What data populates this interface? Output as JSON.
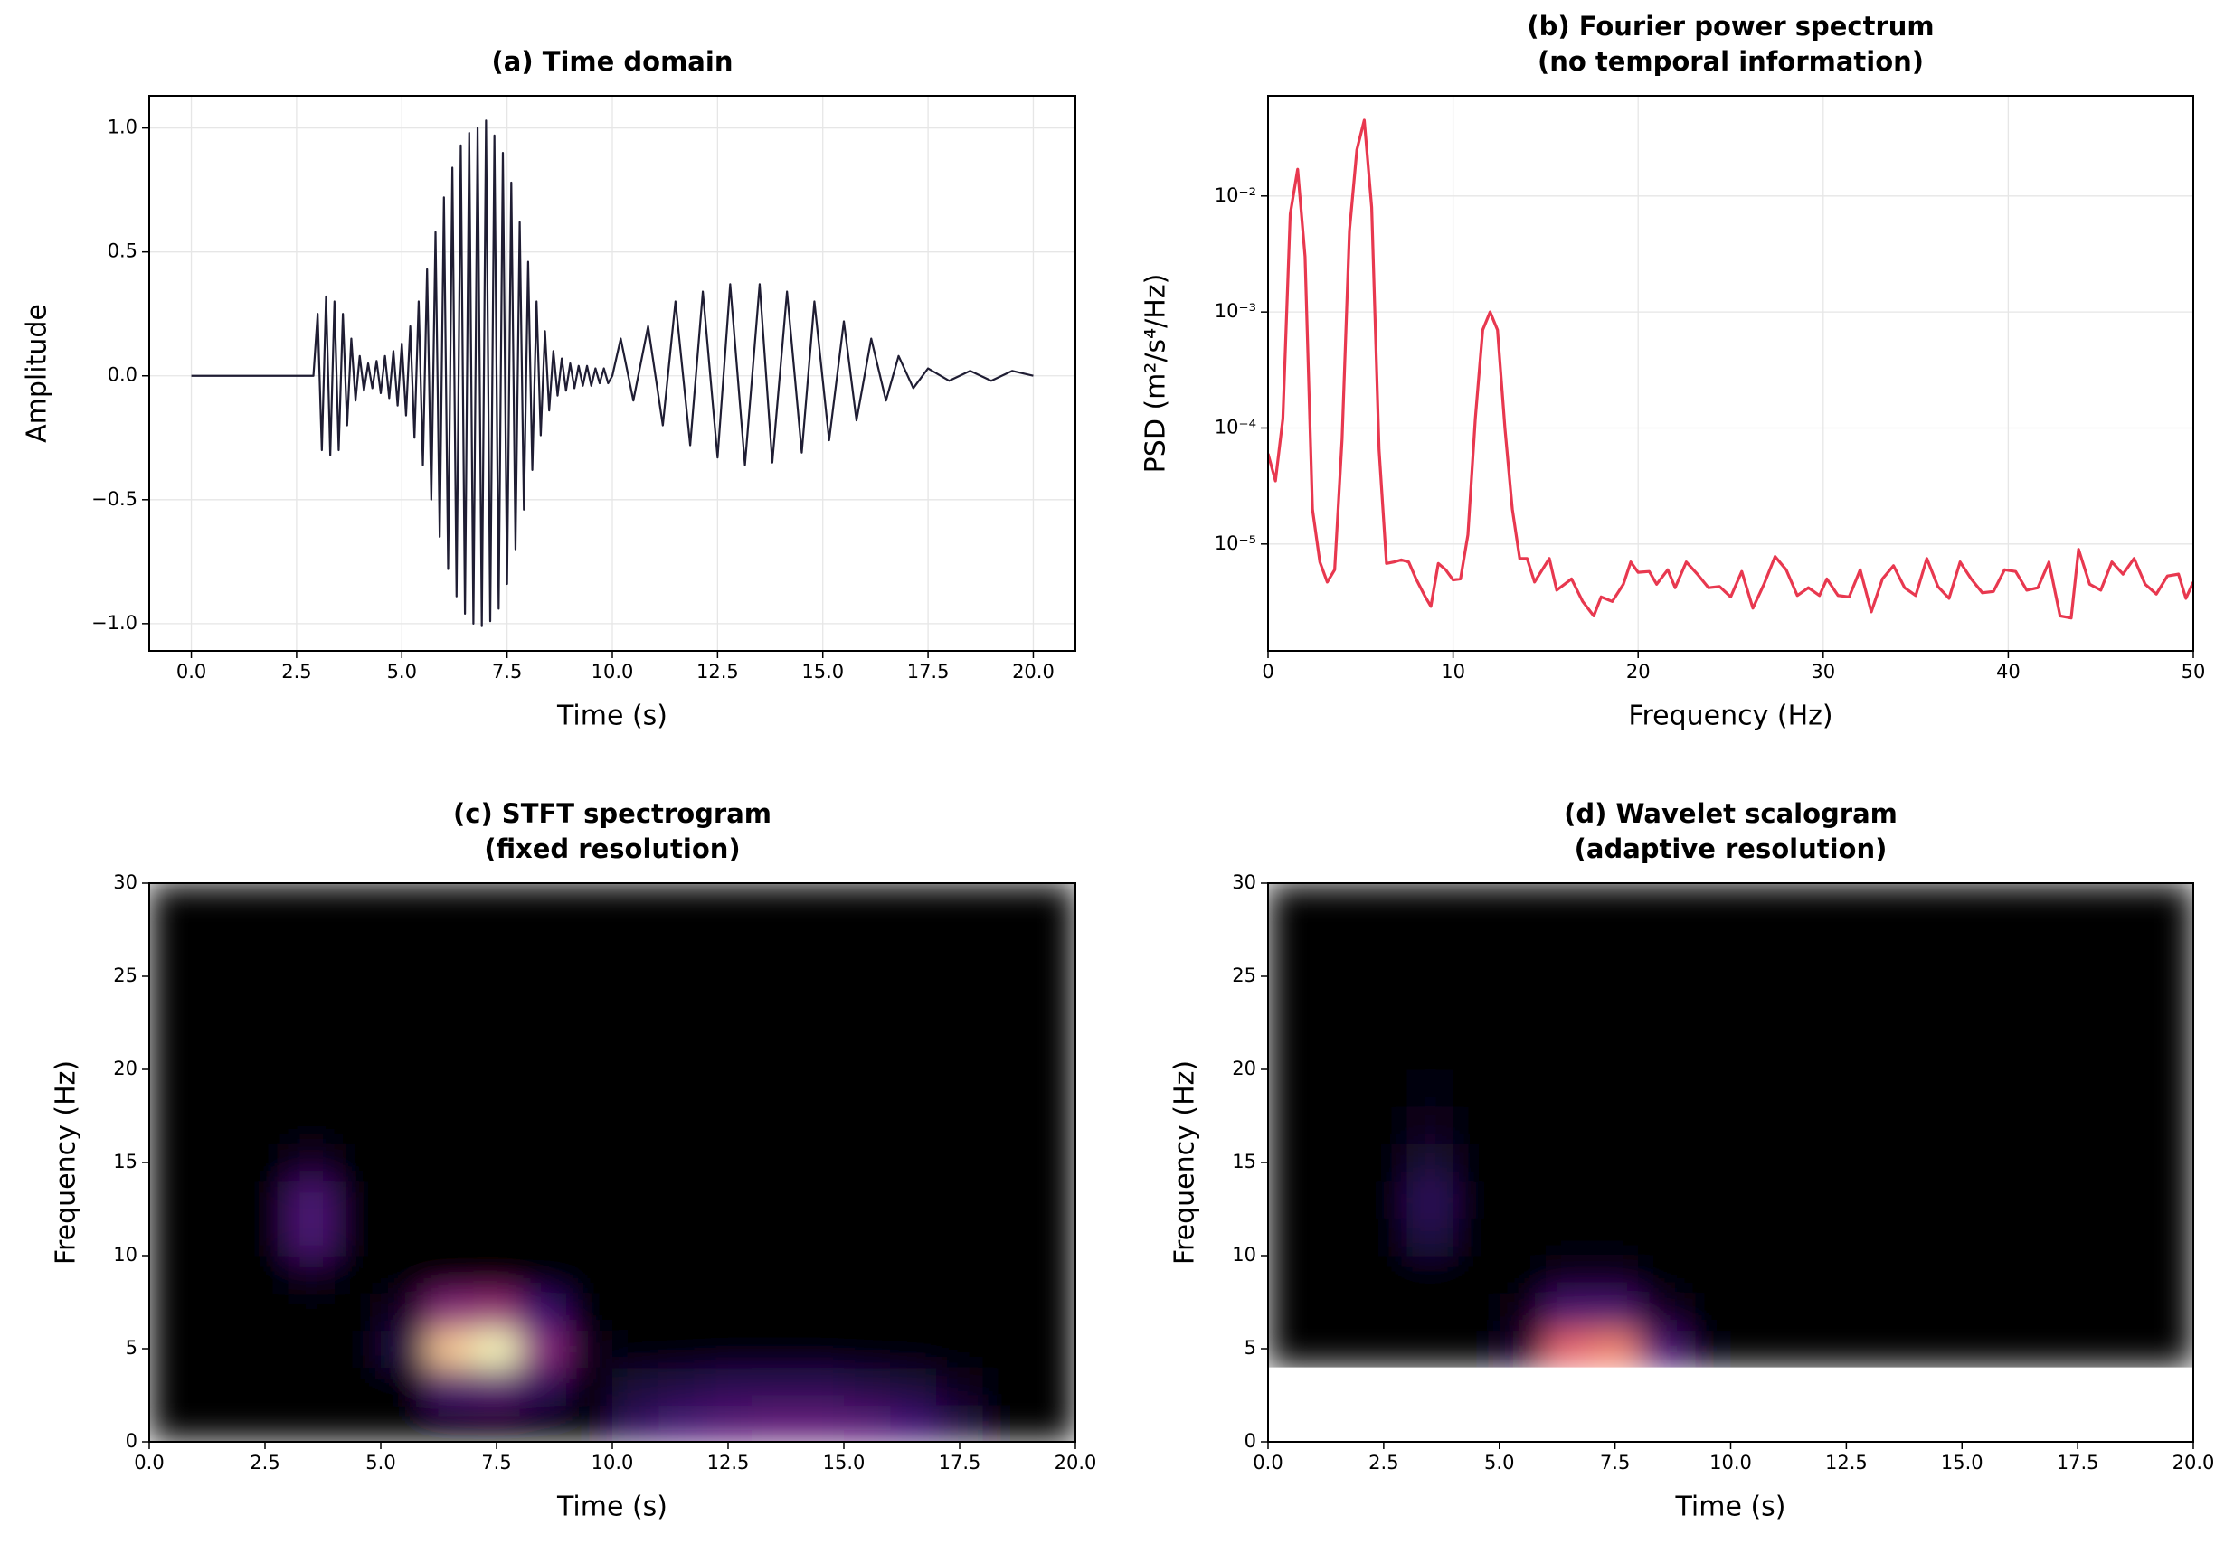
{
  "chart_data": [
    {
      "type": "line",
      "title": "(a) Time domain",
      "xlabel": "Time (s)",
      "ylabel": "Amplitude",
      "color": "#1f1d33",
      "grid": true,
      "xlim": [
        -1,
        21
      ],
      "ylim": [
        -1.11,
        1.13
      ],
      "xticks": [
        {
          "value": 0,
          "label": "0.0"
        },
        2.5,
        {
          "value": 5,
          "label": "5.0"
        },
        7.5,
        {
          "value": 10,
          "label": "10.0"
        },
        12.5,
        {
          "value": 15,
          "label": "15.0"
        },
        17.5,
        {
          "value": 20,
          "label": "20.0"
        }
      ],
      "yticks": [
        {
          "value": -1,
          "label": "−1.0"
        },
        {
          "value": -0.5,
          "label": "−0.5"
        },
        {
          "value": 0,
          "label": "0.0"
        },
        0.5,
        {
          "value": 1,
          "label": "1.0"
        }
      ],
      "x": [
        0,
        2.9,
        3.0,
        3.1,
        3.2,
        3.3,
        3.4,
        3.5,
        3.6,
        3.7,
        3.8,
        3.9,
        4.0,
        4.1,
        4.2,
        4.3,
        4.4,
        4.5,
        4.6,
        4.7,
        4.8,
        4.9,
        5.0,
        5.1,
        5.2,
        5.3,
        5.4,
        5.5,
        5.6,
        5.7,
        5.8,
        5.9,
        6.0,
        6.1,
        6.2,
        6.3,
        6.4,
        6.5,
        6.6,
        6.7,
        6.8,
        6.9,
        7.0,
        7.1,
        7.2,
        7.3,
        7.4,
        7.5,
        7.6,
        7.7,
        7.8,
        7.9,
        8.0,
        8.1,
        8.2,
        8.3,
        8.4,
        8.5,
        8.6,
        8.7,
        8.8,
        8.9,
        9.0,
        9.1,
        9.2,
        9.3,
        9.4,
        9.5,
        9.6,
        9.7,
        9.8,
        9.9,
        10.0,
        10.2,
        10.5,
        10.85,
        11.2,
        11.5,
        11.85,
        12.15,
        12.5,
        12.8,
        13.15,
        13.5,
        13.8,
        14.15,
        14.5,
        14.8,
        15.15,
        15.5,
        15.8,
        16.15,
        16.5,
        16.8,
        17.15,
        17.5,
        18,
        18.5,
        19,
        19.5,
        20
      ],
      "values": [
        0,
        0,
        0.25,
        -0.3,
        0.32,
        -0.32,
        0.3,
        -0.3,
        0.25,
        -0.2,
        0.15,
        -0.1,
        0.08,
        -0.06,
        0.05,
        -0.05,
        0.06,
        -0.07,
        0.08,
        -0.09,
        0.1,
        -0.12,
        0.13,
        -0.16,
        0.2,
        -0.25,
        0.3,
        -0.36,
        0.43,
        -0.5,
        0.58,
        -0.65,
        0.72,
        -0.78,
        0.84,
        -0.89,
        0.93,
        -0.96,
        0.98,
        -1.0,
        1.0,
        -1.01,
        1.03,
        -0.99,
        0.97,
        -0.94,
        0.9,
        -0.84,
        0.78,
        -0.7,
        0.62,
        -0.54,
        0.46,
        -0.38,
        0.3,
        -0.24,
        0.18,
        -0.14,
        0.1,
        -0.08,
        0.07,
        -0.06,
        0.05,
        -0.05,
        0.04,
        -0.04,
        0.04,
        -0.04,
        0.03,
        -0.03,
        0.03,
        -0.03,
        0,
        0.15,
        -0.1,
        0.2,
        -0.2,
        0.3,
        -0.28,
        0.34,
        -0.33,
        0.37,
        -0.36,
        0.37,
        -0.35,
        0.34,
        -0.31,
        0.3,
        -0.26,
        0.22,
        -0.18,
        0.15,
        -0.1,
        0.08,
        -0.05,
        0.03,
        -0.02,
        0.02,
        -0.02,
        0.02,
        0
      ]
    },
    {
      "type": "line",
      "title": "(b) Fourier power spectrum",
      "subtitle": "(no temporal information)",
      "xlabel": "Frequency (Hz)",
      "ylabel": "PSD (m²/s⁴/Hz)",
      "color": "#e8384f",
      "grid": true,
      "log_y": true,
      "xlim": [
        0,
        50
      ],
      "ylim": [
        1.2e-06,
        0.073
      ],
      "xticks": [
        0,
        10,
        20,
        30,
        40,
        50
      ],
      "yticks": [
        {
          "value": 1e-05,
          "label": "10⁻⁵"
        },
        {
          "value": 0.0001,
          "label": "10⁻⁴"
        },
        {
          "value": 0.001,
          "label": "10⁻³"
        },
        {
          "value": 0.01,
          "label": "10⁻²"
        }
      ],
      "x": [
        0,
        0.4,
        0.8,
        1.2,
        1.6,
        2.0,
        2.4,
        2.8,
        3.2,
        3.6,
        4.0,
        4.4,
        4.8,
        5.2,
        5.6,
        6.0,
        6.4,
        6.8,
        7.2,
        7.6,
        8,
        8.5,
        8.8,
        9.2,
        9.6,
        10,
        10.4,
        10.8,
        11.2,
        11.6,
        12.0,
        12.4,
        12.8,
        13.2,
        13.6,
        14,
        14.4,
        15.2,
        15.6,
        16.4,
        17,
        17.6,
        18,
        18.6,
        19.2,
        19.6,
        20,
        20.6,
        21,
        21.6,
        22,
        22.6,
        23.2,
        23.8,
        24.4,
        25,
        25.6,
        26.2,
        26.8,
        27.4,
        28,
        28.6,
        29.2,
        29.8,
        30.2,
        30.8,
        31.4,
        32,
        32.6,
        33.2,
        33.8,
        34.4,
        35,
        35.6,
        36.2,
        36.8,
        37.4,
        38,
        38.6,
        39.2,
        39.8,
        40.4,
        41,
        41.6,
        42.2,
        42.8,
        43.4,
        43.8,
        44.4,
        45,
        45.6,
        46.2,
        46.8,
        47.4,
        48,
        48.6,
        49.2,
        49.6,
        50
      ],
      "values": [
        6e-05,
        3.5e-05,
        0.00012,
        0.007,
        0.017,
        0.003,
        2e-05,
        7e-06,
        4.7e-06,
        6e-06,
        8e-05,
        0.005,
        0.025,
        0.045,
        0.008,
        6.5e-05,
        6.8e-06,
        7e-06,
        7.3e-06,
        7e-06,
        5e-06,
        3.5e-06,
        2.9e-06,
        6.8e-06,
        6e-06,
        4.9e-06,
        5e-06,
        1.2e-05,
        0.00012,
        0.0007,
        0.001,
        0.0007,
        0.0001,
        2e-05,
        7.5e-06,
        7.5e-06,
        4.7e-06,
        7.5e-06,
        4e-06,
        5e-06,
        3.2e-06,
        2.4e-06,
        3.5e-06,
        3.2e-06,
        4.5e-06,
        7e-06,
        5.7e-06,
        5.8e-06,
        4.5e-06,
        6e-06,
        4.2e-06,
        7e-06,
        5.5e-06,
        4.2e-06,
        4.3e-06,
        3.5e-06,
        5.8e-06,
        2.8e-06,
        4.5e-06,
        7.8e-06,
        6e-06,
        3.6e-06,
        4.2e-06,
        3.6e-06,
        5e-06,
        3.6e-06,
        3.5e-06,
        6e-06,
        2.6e-06,
        5e-06,
        6.5e-06,
        4.2e-06,
        3.6e-06,
        7.5e-06,
        4.3e-06,
        3.4e-06,
        7e-06,
        5e-06,
        3.8e-06,
        3.9e-06,
        6e-06,
        5.8e-06,
        4e-06,
        4.2e-06,
        7e-06,
        2.4e-06,
        2.3e-06,
        9e-06,
        4.5e-06,
        4e-06,
        7e-06,
        5.5e-06,
        7.5e-06,
        4.5e-06,
        3.7e-06,
        5.3e-06,
        5.5e-06,
        3.4e-06,
        4.7e-06
      ]
    },
    {
      "type": "heatmap",
      "title": "(c) STFT spectrogram",
      "subtitle": "(fixed resolution)",
      "xlabel": "Time (s)",
      "ylabel": "Frequency (Hz)",
      "xlim": [
        0,
        20
      ],
      "ylim": [
        0,
        30
      ],
      "xticks": [
        {
          "value": 0,
          "label": "0.0"
        },
        2.5,
        {
          "value": 5,
          "label": "5.0"
        },
        7.5,
        {
          "value": 10,
          "label": "10.0"
        },
        12.5,
        {
          "value": 15,
          "label": "15.0"
        },
        17.5,
        {
          "value": 20,
          "label": "20.0"
        }
      ],
      "yticks": [
        0,
        5,
        10,
        15,
        20,
        25,
        30
      ],
      "xbins": [
        0,
        1,
        2,
        3,
        4,
        5,
        6,
        7,
        8,
        9,
        10,
        11,
        12,
        13,
        14,
        15,
        16,
        17,
        18,
        19,
        20
      ],
      "ybins": [
        0,
        2,
        4,
        6,
        8,
        10,
        12,
        14,
        16,
        18,
        20,
        22,
        24,
        26,
        28,
        30
      ],
      "z": [
        [
          0,
          0,
          0,
          0,
          0,
          0,
          0,
          0,
          0,
          0,
          0.2,
          0.28,
          0.33,
          0.36,
          0.36,
          0.33,
          0.26,
          0.14,
          0,
          0
        ],
        [
          0,
          0,
          0,
          0,
          0,
          0,
          0.3,
          0.35,
          0.2,
          0,
          0.12,
          0.15,
          0.18,
          0.18,
          0.18,
          0.15,
          0.12,
          0.06,
          0,
          0
        ],
        [
          0,
          0,
          0,
          0,
          0,
          0.15,
          0.95,
          1.0,
          0.5,
          0.05,
          0,
          0,
          0,
          0,
          0,
          0,
          0,
          0,
          0,
          0
        ],
        [
          0,
          0,
          0,
          0,
          0,
          0.08,
          0.5,
          0.55,
          0.25,
          0,
          0,
          0,
          0,
          0,
          0,
          0,
          0,
          0,
          0,
          0
        ],
        [
          0,
          0,
          0,
          0.06,
          0,
          0,
          0,
          0,
          0,
          0,
          0,
          0,
          0,
          0,
          0,
          0,
          0,
          0,
          0,
          0
        ],
        [
          0,
          0,
          0,
          0.3,
          0,
          0,
          0,
          0,
          0,
          0,
          0,
          0,
          0,
          0,
          0,
          0,
          0,
          0,
          0,
          0
        ],
        [
          0,
          0,
          0,
          0.3,
          0,
          0,
          0,
          0,
          0,
          0,
          0,
          0,
          0,
          0,
          0,
          0,
          0,
          0,
          0,
          0
        ],
        [
          0,
          0,
          0,
          0.08,
          0,
          0,
          0,
          0,
          0,
          0,
          0,
          0,
          0,
          0,
          0,
          0,
          0,
          0,
          0,
          0
        ],
        [
          0,
          0,
          0,
          0,
          0,
          0,
          0,
          0,
          0,
          0,
          0,
          0,
          0,
          0,
          0,
          0,
          0,
          0,
          0,
          0
        ],
        [
          0,
          0,
          0,
          0,
          0,
          0,
          0,
          0,
          0,
          0,
          0,
          0,
          0,
          0,
          0,
          0,
          0,
          0,
          0,
          0
        ],
        [
          0,
          0,
          0,
          0,
          0,
          0,
          0,
          0,
          0,
          0,
          0,
          0,
          0,
          0,
          0,
          0,
          0,
          0,
          0,
          0
        ],
        [
          0,
          0,
          0,
          0,
          0,
          0,
          0,
          0,
          0,
          0,
          0,
          0,
          0,
          0,
          0,
          0,
          0,
          0,
          0,
          0
        ],
        [
          0,
          0,
          0,
          0,
          0,
          0,
          0,
          0,
          0,
          0,
          0,
          0,
          0,
          0,
          0,
          0,
          0,
          0,
          0,
          0
        ],
        [
          0,
          0,
          0,
          0,
          0,
          0,
          0,
          0,
          0,
          0,
          0,
          0,
          0,
          0,
          0,
          0,
          0,
          0,
          0,
          0
        ],
        [
          0,
          0,
          0,
          0,
          0,
          0,
          0,
          0,
          0,
          0,
          0,
          0,
          0,
          0,
          0,
          0,
          0,
          0,
          0,
          0
        ]
      ]
    },
    {
      "type": "heatmap",
      "title": "(d) Wavelet scalogram",
      "subtitle": "(adaptive resolution)",
      "xlabel": "Time (s)",
      "ylabel": "Frequency (Hz)",
      "xlim": [
        0,
        20
      ],
      "ylim": [
        0,
        30
      ],
      "xticks": [
        {
          "value": 0,
          "label": "0.0"
        },
        2.5,
        {
          "value": 5,
          "label": "5.0"
        },
        7.5,
        {
          "value": 10,
          "label": "10.0"
        },
        12.5,
        {
          "value": 15,
          "label": "15.0"
        },
        17.5,
        {
          "value": 20,
          "label": "20.0"
        }
      ],
      "yticks": [
        0,
        5,
        10,
        15,
        20,
        25,
        30
      ],
      "xbins": [
        0,
        1,
        2,
        3,
        4,
        5,
        6,
        7,
        8,
        9,
        10,
        11,
        12,
        13,
        14,
        15,
        16,
        17,
        18,
        19,
        20
      ],
      "ybins": [
        0,
        2,
        4,
        6,
        8,
        10,
        12,
        14,
        16,
        18,
        20,
        22,
        24,
        26,
        28,
        30
      ],
      "z": [
        [
          null,
          null,
          null,
          null,
          null,
          null,
          null,
          null,
          null,
          null,
          null,
          null,
          null,
          null,
          null,
          null,
          null,
          null,
          null,
          null
        ],
        [
          null,
          null,
          null,
          null,
          null,
          null,
          null,
          null,
          null,
          null,
          null,
          null,
          null,
          null,
          null,
          null,
          null,
          null,
          null,
          null
        ],
        [
          0,
          0,
          0,
          0,
          0,
          0.1,
          0.8,
          0.85,
          0.3,
          0.02,
          0,
          0,
          0,
          0,
          0,
          0,
          0,
          0,
          0,
          0
        ],
        [
          0,
          0,
          0,
          0,
          0,
          0.04,
          0.3,
          0.3,
          0.08,
          0,
          0,
          0,
          0,
          0,
          0,
          0,
          0,
          0,
          0,
          0
        ],
        [
          0,
          0,
          0,
          0,
          0,
          0,
          0.06,
          0.06,
          0,
          0,
          0,
          0,
          0,
          0,
          0,
          0,
          0,
          0,
          0,
          0
        ],
        [
          0,
          0,
          0,
          0.15,
          0,
          0,
          0,
          0,
          0,
          0,
          0,
          0,
          0,
          0,
          0,
          0,
          0,
          0,
          0,
          0
        ],
        [
          0,
          0,
          0,
          0.2,
          0,
          0,
          0,
          0,
          0,
          0,
          0,
          0,
          0,
          0,
          0,
          0,
          0,
          0,
          0,
          0
        ],
        [
          0,
          0,
          0,
          0.12,
          0,
          0,
          0,
          0,
          0,
          0,
          0,
          0,
          0,
          0,
          0,
          0,
          0,
          0,
          0,
          0
        ],
        [
          0,
          0,
          0,
          0.05,
          0,
          0,
          0,
          0,
          0,
          0,
          0,
          0,
          0,
          0,
          0,
          0,
          0,
          0,
          0,
          0
        ],
        [
          0,
          0,
          0,
          0.02,
          0,
          0,
          0,
          0,
          0,
          0,
          0,
          0,
          0,
          0,
          0,
          0,
          0,
          0,
          0,
          0
        ],
        [
          0,
          0,
          0,
          0,
          0,
          0,
          0,
          0,
          0,
          0,
          0,
          0,
          0,
          0,
          0,
          0,
          0,
          0,
          0,
          0
        ],
        [
          0,
          0,
          0,
          0,
          0,
          0,
          0,
          0,
          0,
          0,
          0,
          0,
          0,
          0,
          0,
          0,
          0,
          0,
          0,
          0
        ],
        [
          0,
          0,
          0,
          0,
          0,
          0,
          0,
          0,
          0,
          0,
          0,
          0,
          0,
          0,
          0,
          0,
          0,
          0,
          0,
          0
        ],
        [
          0,
          0,
          0,
          0,
          0,
          0,
          0,
          0,
          0,
          0,
          0,
          0,
          0,
          0,
          0,
          0,
          0,
          0,
          0,
          0
        ],
        [
          0,
          0,
          0,
          0,
          0,
          0,
          0,
          0,
          0,
          0,
          0,
          0,
          0,
          0,
          0,
          0,
          0,
          0,
          0,
          0
        ]
      ]
    }
  ]
}
